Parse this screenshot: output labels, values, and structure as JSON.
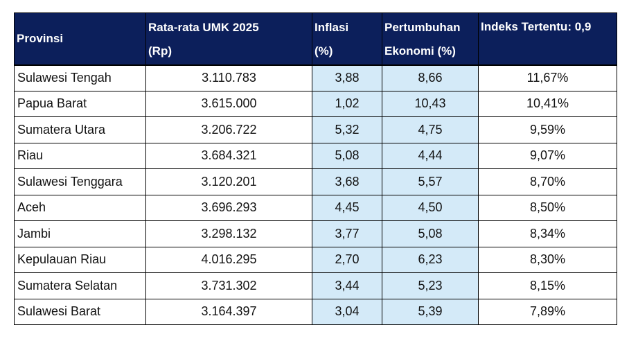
{
  "table": {
    "headers": [
      "Provinsi",
      "Rata-rata UMK 2025",
      "(Rp)",
      "Inflasi",
      "(%)",
      "Pertumbuhan",
      "Ekonomi (%)",
      "Indeks Tertentu: 0,9"
    ],
    "rows": [
      [
        "Sulawesi Tengah",
        "3.110.783",
        "3,88",
        "8,66",
        "11,67%"
      ],
      [
        "Papua Barat",
        "3.615.000",
        "1,02",
        "10,43",
        "10,41%"
      ],
      [
        "Sumatera Utara",
        "3.206.722",
        "5,32",
        "4,75",
        "9,59%"
      ],
      [
        "Riau",
        "3.684.321",
        "5,08",
        "4,44",
        "9,07%"
      ],
      [
        "Sulawesi Tenggara",
        "3.120.201",
        "3,68",
        "5,57",
        "8,70%"
      ],
      [
        "Aceh",
        "3.696.293",
        "4,45",
        "4,50",
        "8,50%"
      ],
      [
        "Jambi",
        "3.298.132",
        "3,77",
        "5,08",
        "8,34%"
      ],
      [
        "Kepulauan Riau",
        "4.016.295",
        "2,70",
        "6,23",
        "8,30%"
      ],
      [
        "Sumatera Selatan",
        "3.731.302",
        "3,44",
        "5,23",
        "8,15%"
      ],
      [
        "Sulawesi Barat",
        "3.164.397",
        "3,04",
        "5,39",
        "7,89%"
      ]
    ]
  },
  "colors": {
    "header_bg": "#0c1f5b",
    "highlight_bg": "#d4eaf8"
  }
}
